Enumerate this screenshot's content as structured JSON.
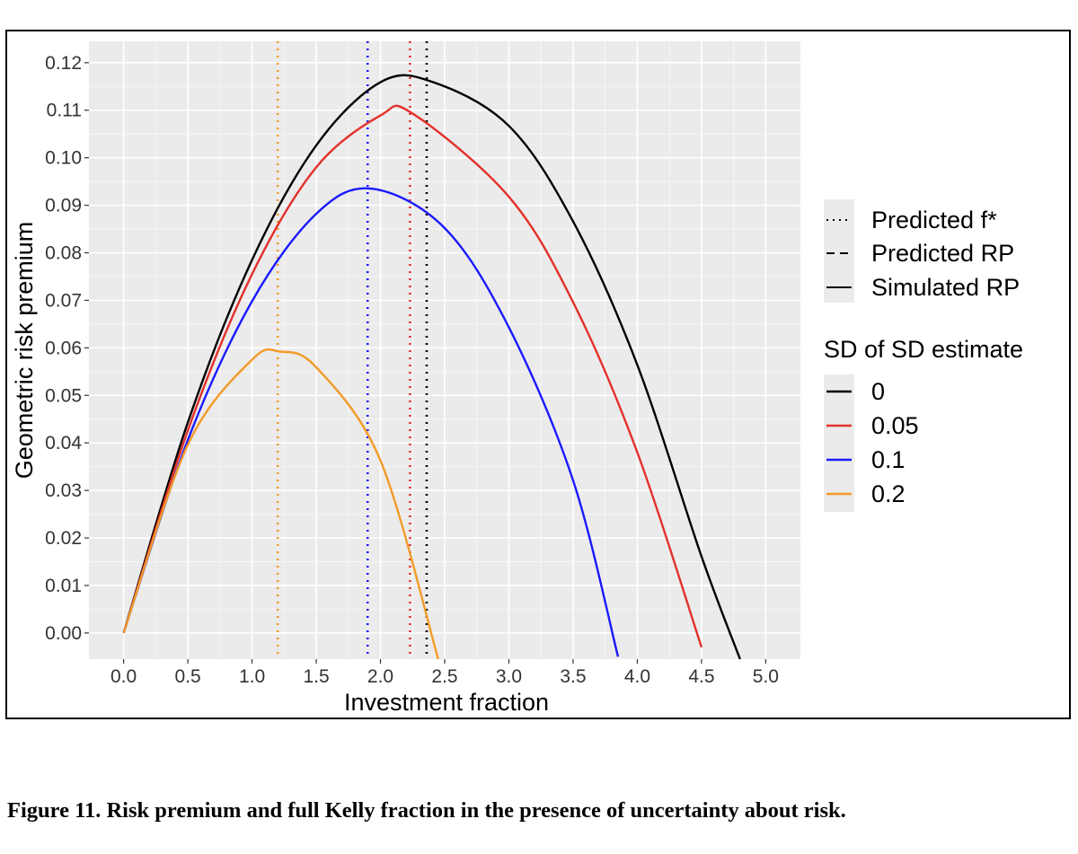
{
  "caption": "Figure 11. Risk premium and full Kelly fraction in the presence of uncertainty about risk.",
  "chart_data": {
    "type": "line",
    "title": "",
    "xlabel": "Investment fraction",
    "ylabel": "Geometric risk premium",
    "xlim": [
      -0.27,
      5.27
    ],
    "ylim": [
      -0.0055,
      0.1245
    ],
    "x_ticks": [
      "0.0",
      "0.5",
      "1.0",
      "1.5",
      "2.0",
      "2.5",
      "3.0",
      "3.5",
      "4.0",
      "4.5",
      "5.0"
    ],
    "y_ticks": [
      "0.00",
      "0.01",
      "0.02",
      "0.03",
      "0.04",
      "0.05",
      "0.06",
      "0.07",
      "0.08",
      "0.09",
      "0.10",
      "0.11",
      "0.12"
    ],
    "grid": true,
    "legend_position": "right",
    "linetype_legend": {
      "items": [
        "Predicted f*",
        "Predicted RP",
        "Simulated RP"
      ]
    },
    "color_legend": {
      "title": "SD of SD estimate",
      "items": [
        "0",
        "0.05",
        "0.1",
        "0.2"
      ]
    },
    "series": [
      {
        "name": "0",
        "color": "#000000",
        "peak_x": 2.4,
        "peak_y": 0.116,
        "x": [
          0.0,
          0.5,
          1.0,
          1.5,
          2.0,
          2.4,
          3.0,
          3.5,
          4.0,
          4.5,
          4.8
        ],
        "y": [
          0.0,
          0.0443,
          0.0785,
          0.1026,
          0.1159,
          0.116,
          0.1067,
          0.0866,
          0.0564,
          0.0161,
          -0.0055
        ]
      },
      {
        "name": "0.05",
        "color": "#e3312b",
        "peak_x": 2.25,
        "peak_y": 0.1093,
        "x": [
          0.0,
          0.5,
          1.0,
          1.5,
          2.0,
          2.25,
          3.0,
          3.5,
          4.0,
          4.5
        ],
        "y": [
          0.0,
          0.0426,
          0.0755,
          0.098,
          0.1089,
          0.1093,
          0.0918,
          0.0696,
          0.038,
          -0.003
        ]
      },
      {
        "name": "0.1",
        "color": "#1a1aff",
        "peak_x": 1.93,
        "peak_y": 0.0935,
        "x": [
          0.0,
          0.5,
          1.0,
          1.5,
          1.93,
          2.5,
          3.0,
          3.5,
          3.85
        ],
        "y": [
          0.0,
          0.0406,
          0.0698,
          0.0882,
          0.0935,
          0.0852,
          0.0643,
          0.0321,
          -0.005
        ]
      },
      {
        "name": "0.2",
        "color": "#f29b27",
        "peak_x": 1.22,
        "peak_y": 0.0592,
        "x": [
          0.0,
          0.5,
          1.0,
          1.22,
          1.5,
          2.0,
          2.45
        ],
        "y": [
          0.0,
          0.0396,
          0.0575,
          0.0592,
          0.0559,
          0.0363,
          -0.0055
        ]
      }
    ],
    "predicted_f_star": [
      {
        "name": "0",
        "color": "#000000",
        "x": 2.36
      },
      {
        "name": "0.05",
        "color": "#e3312b",
        "x": 2.23
      },
      {
        "name": "0.1",
        "color": "#1a1aff",
        "x": 1.9
      },
      {
        "name": "0.2",
        "color": "#f29b27",
        "x": 1.2
      }
    ]
  }
}
